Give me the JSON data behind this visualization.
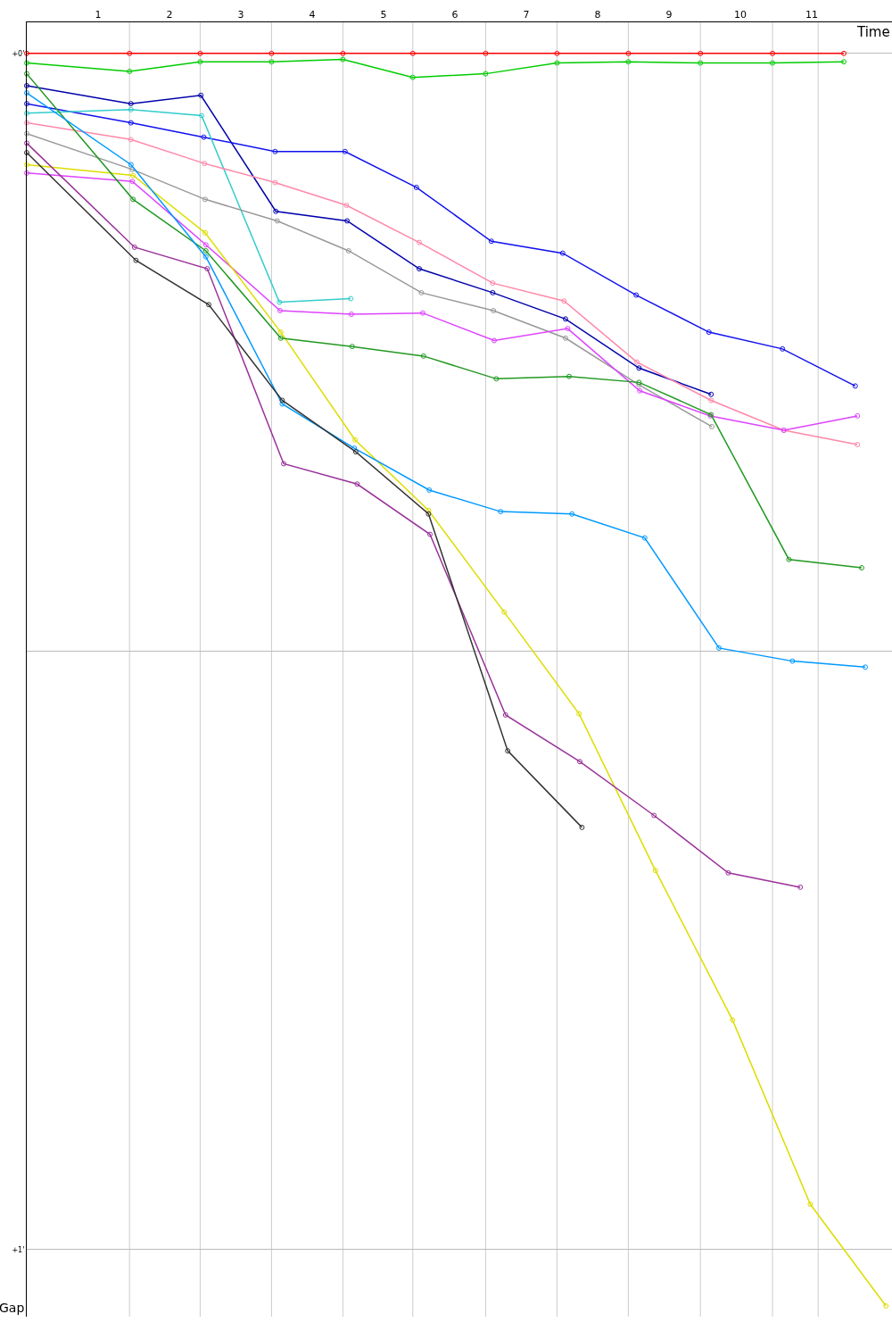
{
  "chart_data": {
    "type": "line",
    "xlabel": "Time",
    "ylabel": "Gap",
    "marker": "circle",
    "grid": "y",
    "xlim": [
      0,
      12.125
    ],
    "ylim": [
      1.056,
      -0.026
    ],
    "xticks": [
      1,
      2,
      3,
      4,
      5,
      6,
      7,
      8,
      9,
      10,
      11
    ],
    "yticks": [
      {
        "value": 0,
        "label": "+0'"
      },
      {
        "value": 0.5,
        "label": null
      },
      {
        "value": 1,
        "label": "+1'"
      }
    ],
    "ref_lines": [
      {
        "axis": "x",
        "value": 1.44,
        "color": "#cccccc"
      },
      {
        "axis": "x",
        "value": 2.43,
        "color": "#cccccc"
      },
      {
        "axis": "x",
        "value": 3.43,
        "color": "#cccccc"
      },
      {
        "axis": "x",
        "value": 4.43,
        "color": "#cccccc"
      },
      {
        "axis": "x",
        "value": 5.41,
        "color": "#cccccc"
      },
      {
        "axis": "x",
        "value": 6.43,
        "color": "#cccccc"
      },
      {
        "axis": "x",
        "value": 7.43,
        "color": "#cccccc"
      },
      {
        "axis": "x",
        "value": 8.43,
        "color": "#cccccc"
      },
      {
        "axis": "x",
        "value": 9.44,
        "color": "#cccccc"
      },
      {
        "axis": "x",
        "value": 10.45,
        "color": "#cccccc"
      },
      {
        "axis": "x",
        "value": 11.09,
        "color": "#cccccc"
      }
    ],
    "series": [
      {
        "color": "#ff0000",
        "x": [
          0,
          1.44,
          2.43,
          3.43,
          4.43,
          5.41,
          6.43,
          7.43,
          8.43,
          9.44,
          10.45,
          11.45
        ],
        "values": [
          0,
          0,
          0,
          0,
          0,
          0,
          0,
          0,
          0,
          0,
          0,
          0
        ]
      },
      {
        "color": "#00cc00",
        "x": [
          0,
          1.44,
          2.43,
          3.43,
          4.43,
          5.41,
          6.43,
          7.43,
          8.43,
          9.44,
          10.45,
          11.45
        ],
        "values": [
          0.008,
          0.015,
          0.007,
          0.007,
          0.005,
          0.02,
          0.017,
          0.008,
          0.007,
          0.008,
          0.008,
          0.007
        ]
      },
      {
        "color": "#0000aa",
        "x": [
          0,
          1.46,
          2.44,
          3.49,
          4.49,
          5.5,
          6.53,
          7.55,
          8.58,
          9.59
        ],
        "values": [
          0.027,
          0.042,
          0.035,
          0.132,
          0.14,
          0.18,
          0.2,
          0.222,
          0.263,
          0.285
        ]
      },
      {
        "color": "#1111ee",
        "x": [
          0,
          1.46,
          2.48,
          3.48,
          4.46,
          5.46,
          6.51,
          7.51,
          8.54,
          9.56,
          10.59,
          11.61
        ],
        "values": [
          0.042,
          0.058,
          0.07,
          0.082,
          0.082,
          0.112,
          0.157,
          0.167,
          0.202,
          0.233,
          0.247,
          0.278
        ]
      },
      {
        "color": "#33cccc",
        "x": [
          0,
          1.46,
          2.45,
          3.54,
          4.54
        ],
        "values": [
          0.05,
          0.047,
          0.052,
          0.208,
          0.205
        ]
      },
      {
        "color": "#ff88aa",
        "x": [
          0,
          1.46,
          2.49,
          3.48,
          4.48,
          5.5,
          6.53,
          7.53,
          8.55,
          9.59,
          10.61,
          11.64
        ],
        "values": [
          0.058,
          0.072,
          0.092,
          0.108,
          0.127,
          0.158,
          0.192,
          0.207,
          0.258,
          0.29,
          0.315,
          0.327
        ]
      },
      {
        "color": "#999999",
        "x": [
          0,
          1.48,
          2.5,
          3.51,
          4.51,
          5.53,
          6.54,
          7.55,
          8.58,
          9.6
        ],
        "values": [
          0.067,
          0.097,
          0.122,
          0.14,
          0.165,
          0.2,
          0.215,
          0.238,
          0.277,
          0.312
        ]
      },
      {
        "color": "#dd44ff",
        "x": [
          0,
          1.48,
          2.51,
          3.55,
          4.55,
          5.55,
          6.55,
          7.58,
          8.59,
          9.58,
          10.61,
          11.64
        ],
        "values": [
          0.1,
          0.107,
          0.16,
          0.215,
          0.218,
          0.217,
          0.24,
          0.23,
          0.282,
          0.303,
          0.315,
          0.303
        ]
      },
      {
        "color": "#dddd00",
        "x": [
          0,
          1.49,
          2.5,
          3.56,
          4.6,
          5.63,
          6.69,
          7.74,
          8.81,
          9.89,
          10.98,
          12.04
        ],
        "values": [
          0.093,
          0.102,
          0.15,
          0.233,
          0.323,
          0.382,
          0.467,
          0.552,
          0.683,
          0.808,
          0.962,
          1.047
        ]
      },
      {
        "color": "#229922",
        "x": [
          0,
          1.49,
          2.51,
          3.56,
          4.56,
          5.56,
          6.58,
          7.6,
          8.58,
          9.59,
          10.68,
          11.7
        ],
        "values": [
          0.017,
          0.122,
          0.165,
          0.238,
          0.245,
          0.253,
          0.272,
          0.27,
          0.275,
          0.302,
          0.423,
          0.43
        ]
      },
      {
        "color": "#0099ff",
        "x": [
          0,
          1.46,
          2.51,
          3.58,
          4.59,
          5.64,
          6.64,
          7.64,
          8.66,
          9.7,
          10.73,
          11.75
        ],
        "values": [
          0.033,
          0.093,
          0.17,
          0.293,
          0.33,
          0.365,
          0.383,
          0.385,
          0.405,
          0.497,
          0.508,
          0.513
        ]
      },
      {
        "color": "#993399",
        "x": [
          0,
          1.51,
          2.53,
          3.6,
          4.63,
          5.65,
          6.71,
          7.75,
          8.79,
          9.83,
          10.84
        ],
        "values": [
          0.075,
          0.162,
          0.18,
          0.343,
          0.36,
          0.402,
          0.553,
          0.592,
          0.637,
          0.685,
          0.697
        ]
      },
      {
        "color": "#333333",
        "x": [
          0,
          1.53,
          2.55,
          3.58,
          4.61,
          5.63,
          6.74,
          7.78
        ],
        "values": [
          0.083,
          0.173,
          0.21,
          0.29,
          0.333,
          0.385,
          0.583,
          0.647
        ]
      }
    ]
  }
}
